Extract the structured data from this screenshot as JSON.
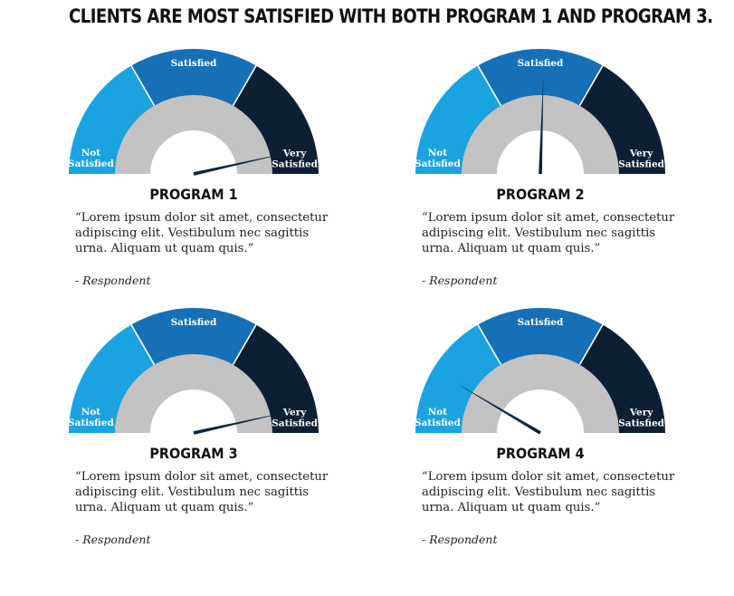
{
  "title": "CLIENTS ARE MOST SATISFIED WITH BOTH PROGRAM 1 AND PROGRAM 3.",
  "colors": {
    "not_satisfied": "#1aa3e0",
    "satisfied": "#1570b8",
    "very_satisfied": "#0d1f33",
    "inner_band": "#c3c3c3",
    "needle": "#0b2540",
    "title": "#111111"
  },
  "chart_data": [
    {
      "type": "gauge",
      "title": "PROGRAM 1",
      "categories": [
        "Not Satisfied",
        "Satisfied",
        "Very Satisfied"
      ],
      "value": 0.93,
      "quote": [
        "“Lorem ipsum dolor sit amet, consectetur",
        "adipiscing elit. Vestibulum nec sagittis",
        "urna. Aliquam ut quam quis.”"
      ],
      "attribution": "- Respondent"
    },
    {
      "type": "gauge",
      "title": "PROGRAM 2",
      "categories": [
        "Not Satisfied",
        "Satisfied",
        "Very Satisfied"
      ],
      "value": 0.51,
      "quote": [
        "“Lorem ipsum dolor sit amet, consectetur",
        "adipiscing elit. Vestibulum nec sagittis",
        "urna. Aliquam ut quam quis.”"
      ],
      "attribution": "- Respondent"
    },
    {
      "type": "gauge",
      "title": "PROGRAM 3",
      "categories": [
        "Not Satisfied",
        "Satisfied",
        "Very Satisfied"
      ],
      "value": 0.93,
      "quote": [
        "“Lorem ipsum dolor sit amet, consectetur",
        "adipiscing elit. Vestibulum nec sagittis",
        "urna. Aliquam ut quam quis.”"
      ],
      "attribution": "- Respondent"
    },
    {
      "type": "gauge",
      "title": "PROGRAM 4",
      "categories": [
        "Not Satisfied",
        "Satisfied",
        "Very Satisfied"
      ],
      "value": 0.17,
      "quote": [
        "“Lorem ipsum dolor sit amet, consectetur",
        "adipiscing elit. Vestibulum nec sagittis",
        "urna. Aliquam ut quam quis.”"
      ],
      "attribution": "- Respondent"
    }
  ]
}
